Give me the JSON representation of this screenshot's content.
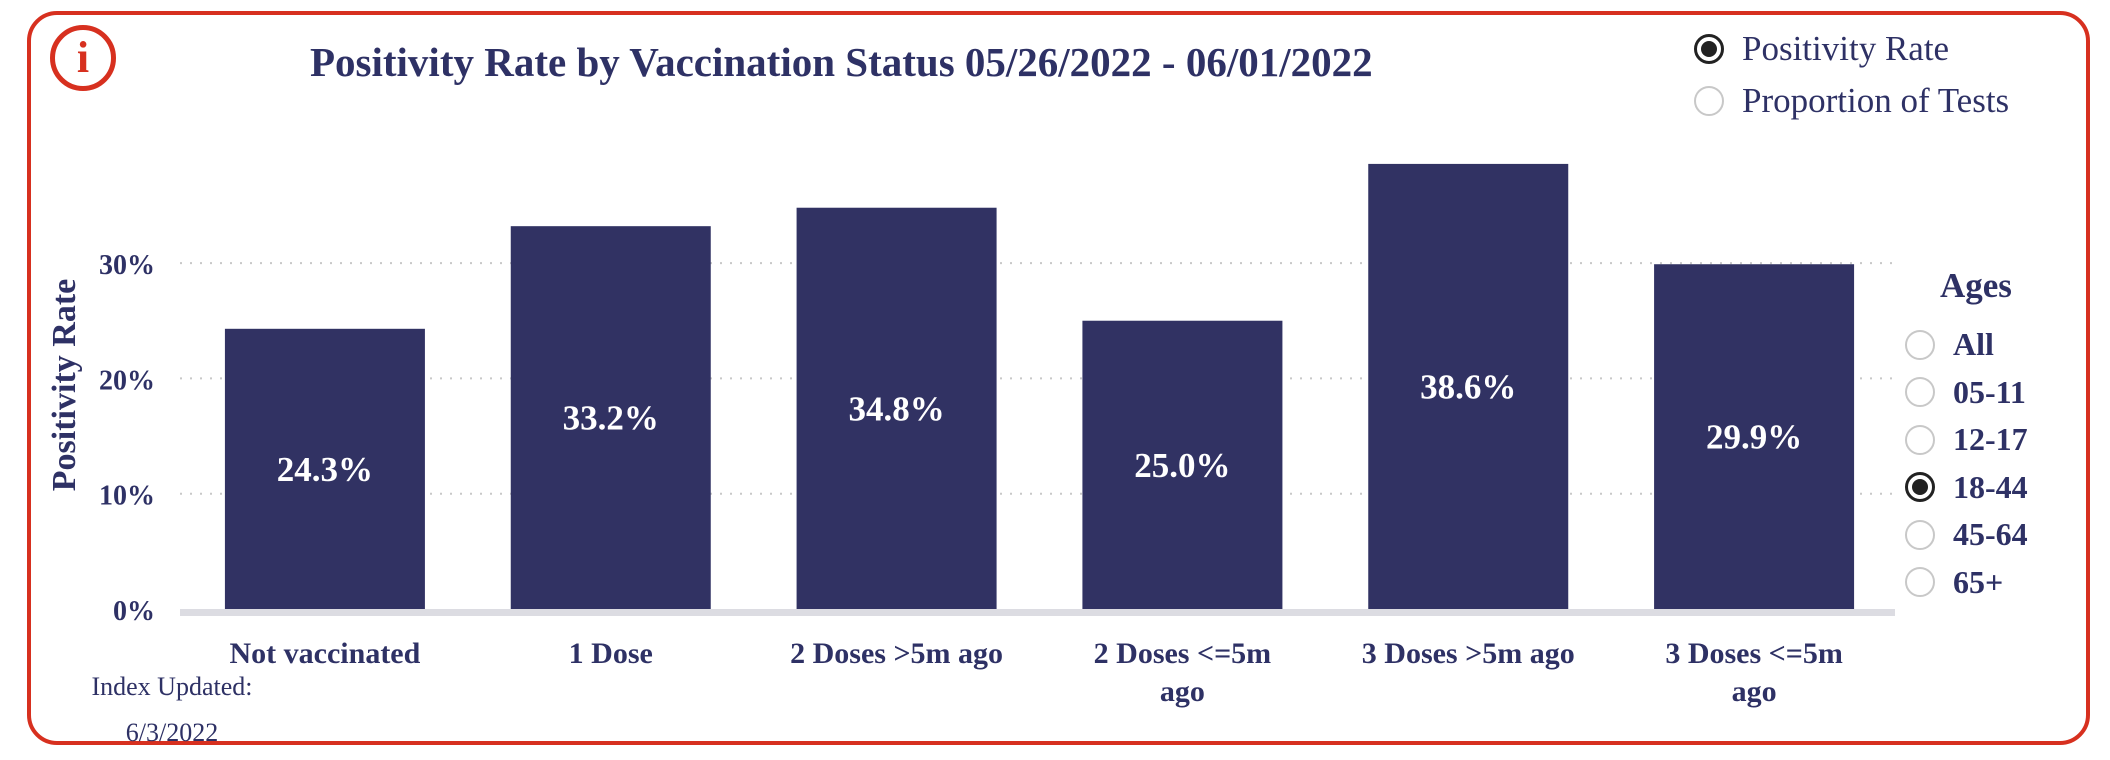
{
  "info_icon": {
    "glyph": "i",
    "icon": "info-icon"
  },
  "title": "Positivity Rate by Vaccination Status 05/26/2022 - 06/01/2022",
  "metric_options": [
    {
      "label": "Positivity Rate",
      "selected": true
    },
    {
      "label": "Proportion of Tests",
      "selected": false
    }
  ],
  "ages": {
    "title": "Ages",
    "options": [
      {
        "label": "All",
        "selected": false
      },
      {
        "label": "05-11",
        "selected": false
      },
      {
        "label": "12-17",
        "selected": false
      },
      {
        "label": "18-44",
        "selected": true
      },
      {
        "label": "45-64",
        "selected": false
      },
      {
        "label": "65+",
        "selected": false
      }
    ]
  },
  "index_updated": {
    "label": "Index Updated:",
    "date": "6/3/2022"
  },
  "colors": {
    "bar": "#313263",
    "text": "#2e3165",
    "accent": "#d7301f",
    "grid": "#c8c8c8"
  },
  "chart_data": {
    "type": "bar",
    "title": "Positivity Rate by Vaccination Status 05/26/2022 - 06/01/2022",
    "xlabel": "",
    "ylabel": "Positivity Rate",
    "categories": [
      [
        "Not vaccinated"
      ],
      [
        "1 Dose"
      ],
      [
        "2 Doses >5m ago"
      ],
      [
        "2 Doses <=5m",
        "ago"
      ],
      [
        "3 Doses >5m ago"
      ],
      [
        "3 Doses <=5m",
        "ago"
      ]
    ],
    "values": [
      24.3,
      33.2,
      34.8,
      25.0,
      38.6,
      29.9
    ],
    "data_labels": [
      "24.3%",
      "33.2%",
      "34.8%",
      "25.0%",
      "38.6%",
      "29.9%"
    ],
    "yticks": [
      0,
      10,
      20,
      30
    ],
    "ytick_labels": [
      "0%",
      "10%",
      "20%",
      "30%"
    ],
    "ylim": [
      0,
      40.5
    ],
    "grid": true
  }
}
